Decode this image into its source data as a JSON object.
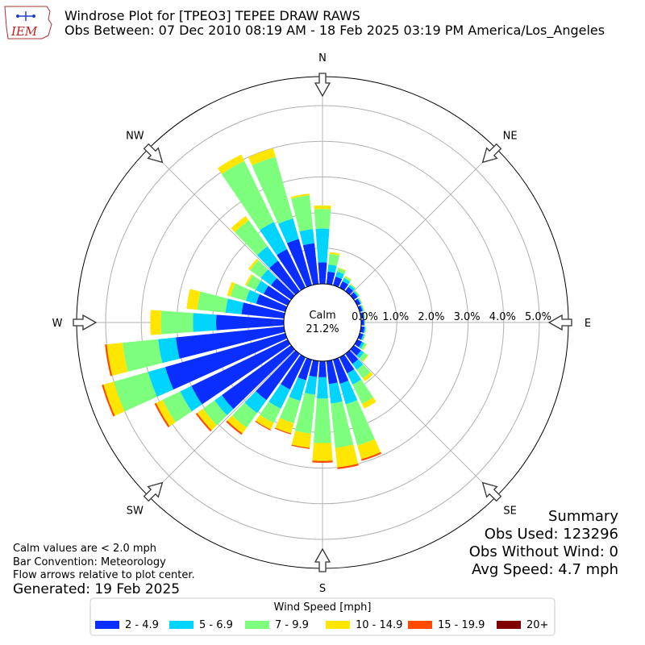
{
  "header": {
    "title": "Windrose Plot for [TPEO3] TEPEE DRAW RAWS",
    "subtitle": "Obs Between: 07 Dec 2010 08:19 AM - 18 Feb 2025 03:19 PM America/Los_Angeles",
    "logo_text": "IEM"
  },
  "notes": {
    "calm_def": "Calm values are < 2.0 mph",
    "bar_convention": "Bar Convention: Meteorology",
    "flow_arrows": "Flow arrows relative to plot center.",
    "generated": "Generated: 19 Feb 2025"
  },
  "summary": {
    "heading": "Summary",
    "obs_used": "Obs Used: 123296",
    "obs_without_wind": "Obs Without Wind: 0",
    "avg_speed": "Avg Speed: 4.7 mph"
  },
  "chart_data": {
    "type": "windrose",
    "calm_label": "Calm",
    "calm_percent": "21.2%",
    "compass_labels": [
      "N",
      "NE",
      "E",
      "SE",
      "S",
      "SW",
      "W",
      "NW"
    ],
    "ring_values": [
      0,
      1,
      2,
      3,
      4,
      5
    ],
    "ring_labels": [
      "0.0%",
      "1.0%",
      "2.0%",
      "3.0%",
      "4.0%",
      "5.0%"
    ],
    "legend_title": "Wind Speed [mph]",
    "bins": [
      {
        "name": "2 - 4.9",
        "color": "#0a2eff"
      },
      {
        "name": "5 - 6.9",
        "color": "#00d4ff"
      },
      {
        "name": "7 - 9.9",
        "color": "#7dff7d"
      },
      {
        "name": "10 - 14.9",
        "color": "#ffe600"
      },
      {
        "name": "15 - 19.9",
        "color": "#ff4a00"
      },
      {
        "name": "20+",
        "color": "#800000"
      }
    ],
    "directions_deg": [
      0,
      10,
      20,
      30,
      40,
      50,
      60,
      70,
      80,
      90,
      100,
      110,
      120,
      130,
      140,
      150,
      160,
      170,
      180,
      190,
      200,
      210,
      220,
      230,
      240,
      250,
      260,
      270,
      280,
      290,
      300,
      310,
      320,
      330,
      340,
      350
    ],
    "cumulative_percent": [
      [
        0.6,
        1.55,
        2.1,
        2.2,
        2.2,
        2.2
      ],
      [
        0.35,
        0.55,
        0.85,
        0.9,
        0.9,
        0.9
      ],
      [
        0.25,
        0.4,
        0.5,
        0.52,
        0.52,
        0.52
      ],
      [
        0.2,
        0.3,
        0.35,
        0.37,
        0.37,
        0.37
      ],
      [
        0.15,
        0.22,
        0.25,
        0.26,
        0.26,
        0.26
      ],
      [
        0.13,
        0.17,
        0.2,
        0.21,
        0.21,
        0.21
      ],
      [
        0.1,
        0.13,
        0.15,
        0.16,
        0.16,
        0.16
      ],
      [
        0.08,
        0.11,
        0.13,
        0.14,
        0.14,
        0.14
      ],
      [
        0.08,
        0.1,
        0.11,
        0.12,
        0.12,
        0.12
      ],
      [
        0.08,
        0.1,
        0.11,
        0.12,
        0.12,
        0.12
      ],
      [
        0.1,
        0.13,
        0.15,
        0.16,
        0.16,
        0.16
      ],
      [
        0.1,
        0.14,
        0.16,
        0.17,
        0.17,
        0.17
      ],
      [
        0.15,
        0.22,
        0.28,
        0.3,
        0.3,
        0.3
      ],
      [
        0.25,
        0.35,
        0.48,
        0.5,
        0.5,
        0.5
      ],
      [
        0.35,
        0.55,
        0.85,
        0.95,
        0.95,
        0.95
      ],
      [
        0.5,
        0.85,
        1.45,
        1.6,
        1.6,
        1.6
      ],
      [
        0.7,
        1.3,
        2.5,
        2.9,
        2.95,
        2.95
      ],
      [
        0.65,
        1.2,
        2.45,
        3.0,
        3.05,
        3.05
      ],
      [
        0.45,
        1.05,
        2.3,
        2.8,
        2.85,
        2.85
      ],
      [
        0.45,
        0.95,
        2.05,
        2.45,
        2.48,
        2.48
      ],
      [
        0.6,
        1.2,
        1.85,
        2.15,
        2.18,
        2.18
      ],
      [
        1.0,
        1.6,
        2.05,
        2.25,
        2.28,
        2.28
      ],
      [
        1.6,
        2.05,
        2.55,
        2.75,
        2.8,
        2.8
      ],
      [
        2.4,
        2.65,
        3.05,
        3.25,
        3.3,
        3.3
      ],
      [
        3.0,
        3.35,
        3.9,
        4.1,
        4.15,
        4.15
      ],
      [
        3.5,
        4.0,
        5.0,
        5.3,
        5.35,
        5.35
      ],
      [
        3.05,
        3.55,
        4.55,
        5.0,
        5.05,
        5.05
      ],
      [
        1.9,
        2.55,
        3.45,
        3.75,
        3.75,
        3.75
      ],
      [
        1.2,
        1.65,
        2.45,
        2.75,
        2.75,
        2.75
      ],
      [
        0.85,
        1.15,
        1.6,
        1.7,
        1.7,
        1.7
      ],
      [
        0.75,
        1.0,
        1.28,
        1.33,
        1.33,
        1.33
      ],
      [
        0.7,
        1.05,
        1.42,
        1.48,
        1.48,
        1.48
      ],
      [
        1.05,
        1.55,
        2.45,
        2.6,
        2.6,
        2.6
      ],
      [
        1.2,
        2.05,
        3.95,
        4.15,
        4.15,
        4.15
      ],
      [
        1.35,
        1.95,
        3.75,
        4.0,
        4.0,
        4.0
      ],
      [
        1.15,
        1.55,
        2.5,
        2.55,
        2.55,
        2.55
      ]
    ]
  }
}
